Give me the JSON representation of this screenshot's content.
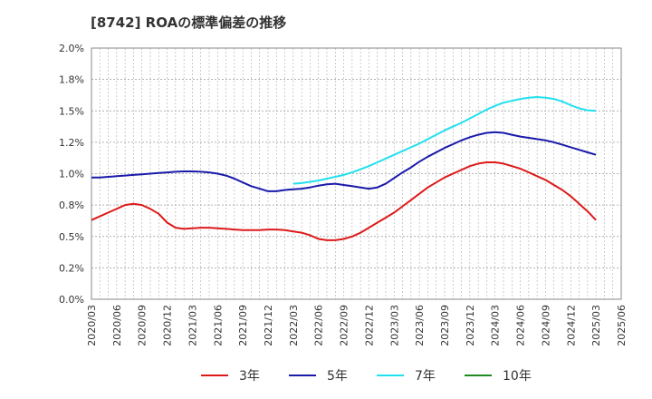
{
  "chart_data": {
    "type": "line",
    "title": "[8742]  ROAの標準偏差の推移",
    "xlabel": "",
    "ylabel": "",
    "ylim": [
      0,
      2.0
    ],
    "y_ticks": [
      "0.0%",
      "0.2%",
      "0.5%",
      "0.8%",
      "1.0%",
      "1.2%",
      "1.5%",
      "1.8%",
      "2.0%"
    ],
    "y_tick_values": [
      0,
      0.25,
      0.5,
      0.75,
      1.0,
      1.25,
      1.5,
      1.75,
      2.0
    ],
    "x_ticks": [
      "2020/03",
      "2020/06",
      "2020/09",
      "2020/12",
      "2021/03",
      "2021/06",
      "2021/09",
      "2021/12",
      "2022/03",
      "2022/06",
      "2022/09",
      "2022/12",
      "2023/03",
      "2023/06",
      "2023/09",
      "2023/12",
      "2024/03",
      "2024/06",
      "2024/09",
      "2024/12",
      "2025/03",
      "2025/06"
    ],
    "grid": true,
    "legend_position": "bottom",
    "series": [
      {
        "name": "3年",
        "color": "#dd1a1a",
        "x": [
          "2020/03",
          "2020/04",
          "2020/05",
          "2020/06",
          "2020/07",
          "2020/08",
          "2020/09",
          "2020/10",
          "2020/11",
          "2020/12",
          "2021/01",
          "2021/02",
          "2021/03",
          "2021/04",
          "2021/05",
          "2021/06",
          "2021/07",
          "2021/08",
          "2021/09",
          "2021/10",
          "2021/11",
          "2021/12",
          "2022/01",
          "2022/02",
          "2022/03",
          "2022/04",
          "2022/05",
          "2022/06",
          "2022/07",
          "2022/08",
          "2022/09",
          "2022/10",
          "2022/11",
          "2022/12",
          "2023/01",
          "2023/02",
          "2023/03",
          "2023/04",
          "2023/05",
          "2023/06",
          "2023/07",
          "2023/08",
          "2023/09",
          "2023/10",
          "2023/11",
          "2023/12",
          "2024/01",
          "2024/02",
          "2024/03",
          "2024/04",
          "2024/05",
          "2024/06",
          "2024/07",
          "2024/08",
          "2024/09",
          "2024/10",
          "2024/11",
          "2024/12",
          "2025/01",
          "2025/02",
          "2025/03"
        ],
        "values": [
          0.63,
          0.66,
          0.69,
          0.72,
          0.75,
          0.76,
          0.75,
          0.72,
          0.68,
          0.61,
          0.57,
          0.56,
          0.565,
          0.57,
          0.57,
          0.565,
          0.56,
          0.555,
          0.55,
          0.55,
          0.55,
          0.555,
          0.555,
          0.55,
          0.54,
          0.53,
          0.51,
          0.48,
          0.47,
          0.47,
          0.48,
          0.5,
          0.53,
          0.57,
          0.61,
          0.65,
          0.69,
          0.74,
          0.79,
          0.84,
          0.89,
          0.93,
          0.97,
          1.0,
          1.03,
          1.06,
          1.08,
          1.09,
          1.09,
          1.08,
          1.06,
          1.04,
          1.01,
          0.98,
          0.95,
          0.91,
          0.87,
          0.82,
          0.76,
          0.7,
          0.63
        ]
      },
      {
        "name": "5年",
        "color": "#1a1aaa",
        "x": [
          "2020/03",
          "2020/04",
          "2020/05",
          "2020/06",
          "2020/07",
          "2020/08",
          "2020/09",
          "2020/10",
          "2020/11",
          "2020/12",
          "2021/01",
          "2021/02",
          "2021/03",
          "2021/04",
          "2021/05",
          "2021/06",
          "2021/07",
          "2021/08",
          "2021/09",
          "2021/10",
          "2021/11",
          "2021/12",
          "2022/01",
          "2022/02",
          "2022/03",
          "2022/04",
          "2022/05",
          "2022/06",
          "2022/07",
          "2022/08",
          "2022/09",
          "2022/10",
          "2022/11",
          "2022/12",
          "2023/01",
          "2023/02",
          "2023/03",
          "2023/04",
          "2023/05",
          "2023/06",
          "2023/07",
          "2023/08",
          "2023/09",
          "2023/10",
          "2023/11",
          "2023/12",
          "2024/01",
          "2024/02",
          "2024/03",
          "2024/04",
          "2024/05",
          "2024/06",
          "2024/07",
          "2024/08",
          "2024/09",
          "2024/10",
          "2024/11",
          "2024/12",
          "2025/01",
          "2025/02",
          "2025/03"
        ],
        "values": [
          0.97,
          0.97,
          0.975,
          0.98,
          0.985,
          0.99,
          0.995,
          1.0,
          1.005,
          1.01,
          1.015,
          1.018,
          1.018,
          1.015,
          1.01,
          1.0,
          0.985,
          0.96,
          0.93,
          0.9,
          0.88,
          0.86,
          0.86,
          0.87,
          0.875,
          0.88,
          0.89,
          0.905,
          0.915,
          0.92,
          0.91,
          0.9,
          0.89,
          0.88,
          0.89,
          0.92,
          0.965,
          1.01,
          1.05,
          1.095,
          1.135,
          1.17,
          1.205,
          1.235,
          1.265,
          1.29,
          1.31,
          1.325,
          1.33,
          1.325,
          1.31,
          1.295,
          1.285,
          1.275,
          1.265,
          1.25,
          1.23,
          1.21,
          1.19,
          1.17,
          1.15
        ]
      },
      {
        "name": "7年",
        "color": "#22e0ee",
        "x": [
          "2022/03",
          "2022/04",
          "2022/05",
          "2022/06",
          "2022/07",
          "2022/08",
          "2022/09",
          "2022/10",
          "2022/11",
          "2022/12",
          "2023/01",
          "2023/02",
          "2023/03",
          "2023/04",
          "2023/05",
          "2023/06",
          "2023/07",
          "2023/08",
          "2023/09",
          "2023/10",
          "2023/11",
          "2023/12",
          "2024/01",
          "2024/02",
          "2024/03",
          "2024/04",
          "2024/05",
          "2024/06",
          "2024/07",
          "2024/08",
          "2024/09",
          "2024/10",
          "2024/11",
          "2024/12",
          "2025/01",
          "2025/02",
          "2025/03"
        ],
        "values": [
          0.92,
          0.925,
          0.935,
          0.945,
          0.96,
          0.975,
          0.99,
          1.01,
          1.035,
          1.06,
          1.09,
          1.12,
          1.15,
          1.18,
          1.21,
          1.24,
          1.275,
          1.31,
          1.345,
          1.375,
          1.405,
          1.44,
          1.475,
          1.51,
          1.54,
          1.565,
          1.58,
          1.595,
          1.605,
          1.61,
          1.605,
          1.595,
          1.575,
          1.545,
          1.52,
          1.505,
          1.5
        ]
      },
      {
        "name": "10年",
        "color": "#228822",
        "x": [],
        "values": []
      }
    ]
  }
}
